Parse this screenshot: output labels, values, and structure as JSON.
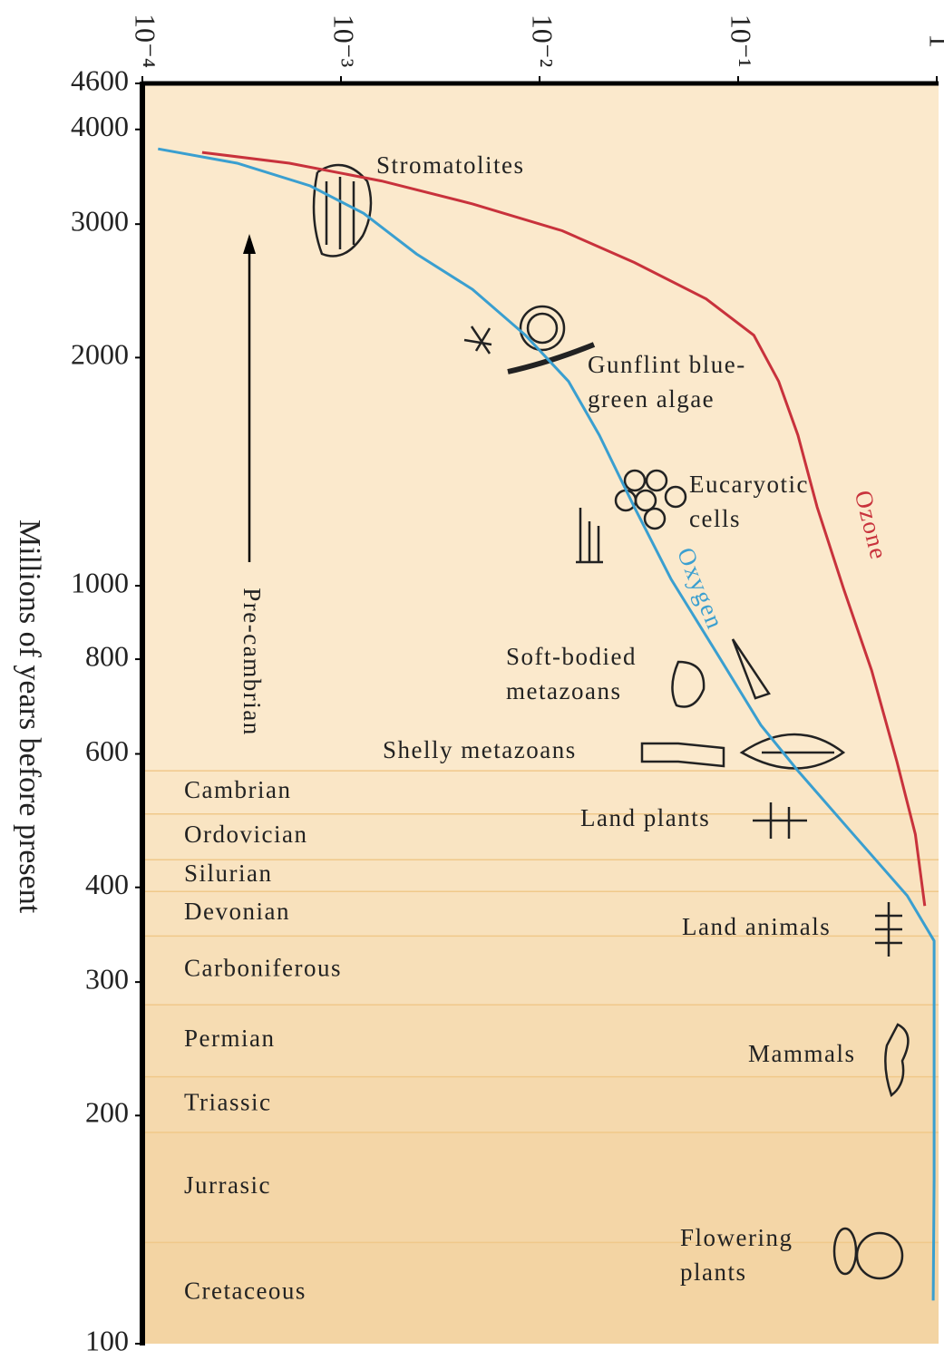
{
  "chart_data": {
    "type": "line",
    "ylabel": "Millions of years before present",
    "xscale": "log",
    "yscale": "log",
    "xlim": [
      0.0001,
      1
    ],
    "xticks": [
      {
        "value": 0.0001,
        "label": "10⁻⁴"
      },
      {
        "value": 0.001,
        "label": "10⁻³"
      },
      {
        "value": 0.01,
        "label": "10⁻²"
      },
      {
        "value": 0.1,
        "label": "10⁻¹"
      },
      1
    ],
    "ylim": [
      100,
      4600
    ],
    "yticks": [
      4600,
      4000,
      3000,
      2000,
      1000,
      800,
      600,
      400,
      300,
      200,
      100
    ],
    "series": [
      {
        "name": "Oxygen",
        "color": "#3a9fd0",
        "x": [
          0.00012,
          0.0003,
          0.0007,
          0.0013,
          0.0024,
          0.0046,
          0.0085,
          0.014,
          0.02,
          0.03,
          0.046,
          0.078,
          0.13,
          0.2,
          0.38,
          0.71,
          0.97,
          0.97,
          0.97,
          0.96
        ],
        "values": [
          3770,
          3610,
          3370,
          3100,
          2740,
          2460,
          2140,
          1860,
          1580,
          1270,
          1020,
          815,
          655,
          570,
          470,
          390,
          340,
          290,
          165,
          114
        ]
      },
      {
        "name": "Ozone",
        "color": "#c8323c",
        "x": [
          0.0002,
          0.00055,
          0.0016,
          0.0046,
          0.013,
          0.03,
          0.069,
          0.12,
          0.16,
          0.2,
          0.25,
          0.34,
          0.47,
          0.63,
          0.78,
          0.87
        ],
        "values": [
          3730,
          3610,
          3420,
          3190,
          2940,
          2670,
          2390,
          2140,
          1860,
          1580,
          1270,
          990,
          773,
          586,
          470,
          378
        ]
      }
    ],
    "periods": [
      {
        "name": "Cambrian",
        "start": 570
      },
      {
        "name": "Ordovician",
        "start": 500
      },
      {
        "name": "Silurian",
        "start": 435
      },
      {
        "name": "Devonian",
        "start": 395
      },
      {
        "name": "Carboniferous",
        "start": 345
      },
      {
        "name": "Permian",
        "start": 280
      },
      {
        "name": "Triassic",
        "start": 225
      },
      {
        "name": "Jurrasic",
        "start": 190
      },
      {
        "name": "Cretaceous",
        "start": 136
      }
    ],
    "era_label": "Pre-cambrian",
    "annotations": [
      {
        "lines": [
          "Stromatolites"
        ]
      },
      {
        "lines": [
          "Gunflint blue-",
          "green algae"
        ]
      },
      {
        "lines": [
          "Eucaryotic",
          "cells"
        ]
      },
      {
        "lines": [
          "Soft-bodied",
          "metazoans"
        ]
      },
      {
        "lines": [
          "Shelly metazoans"
        ]
      },
      {
        "lines": [
          "Land plants"
        ]
      },
      {
        "lines": [
          "Land animals"
        ]
      },
      {
        "lines": [
          "Mammals"
        ]
      },
      {
        "lines": [
          "Flowering",
          "plants"
        ]
      }
    ]
  }
}
